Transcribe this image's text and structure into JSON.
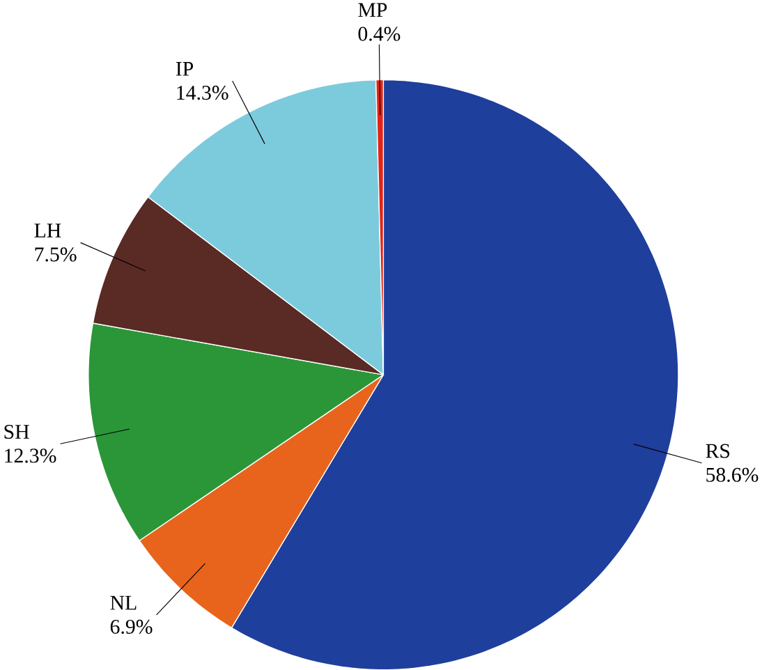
{
  "chart_data": {
    "type": "pie",
    "categories": [
      "RS",
      "NL",
      "SH",
      "LH",
      "IP",
      "MP"
    ],
    "values": [
      58.6,
      6.9,
      12.3,
      7.5,
      14.3,
      0.4
    ],
    "value_labels": [
      "58.6%",
      "6.9%",
      "12.3%",
      "7.5%",
      "14.3%",
      "0.4%"
    ],
    "colors": [
      "#1f3f9c",
      "#e8641c",
      "#2a9638",
      "#5a2a24",
      "#7ccbdc",
      "#e02418"
    ]
  }
}
